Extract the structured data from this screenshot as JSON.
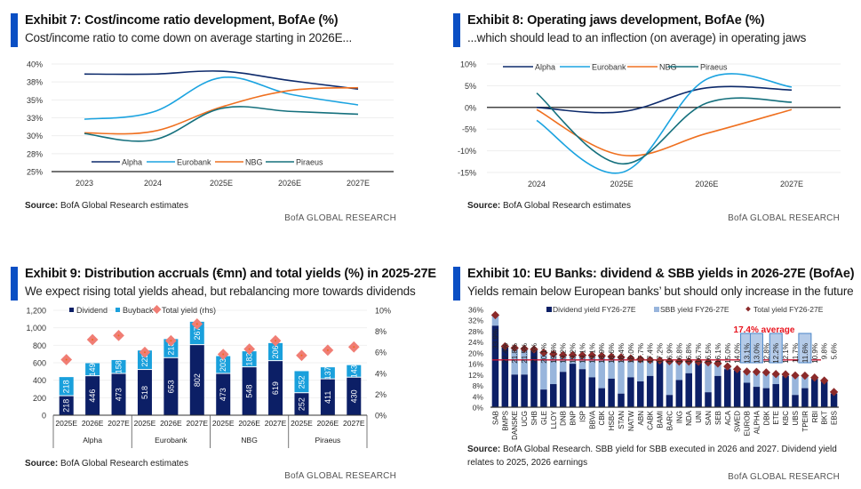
{
  "brand": "BofA GLOBAL RESEARCH",
  "source_label": "Source:",
  "colors": {
    "accent": "#0a4fc4",
    "alpha": "#0d2a6b",
    "eurobank": "#1ba3e0",
    "nbg": "#ef7020",
    "piraeus": "#15707d",
    "dividend": "#0c1f66",
    "buyback": "#1aa0dc",
    "sbb": "#98b5dc",
    "total_yield_9": "#f07d74",
    "total_yield_10": "#8b2a2a",
    "average_line": "#c4122f",
    "average_label": "#e8141e"
  },
  "exhibits": {
    "e7": {
      "title": "Exhibit 7: Cost/income ratio development, BofAe (%)",
      "subtitle": "Cost/income ratio to come down on average starting in 2026E...",
      "source": "BofA Global Research estimates"
    },
    "e8": {
      "title": "Exhibit 8: Operating jaws development, BofAe (%)",
      "subtitle": "...which should lead to an inflection (on average) in operating jaws",
      "source": "BofA Global Research estimates"
    },
    "e9": {
      "title": "Exhibit 9: Distribution accruals (€mn) and total yields (%) in 2025-27E",
      "subtitle": "We expect rising total yields ahead, but rebalancing more towards dividends",
      "source": "BofA Global Research estimates"
    },
    "e10": {
      "title": "Exhibit 10: EU Banks: dividend & SBB yields in 2026-27E (BofAe)",
      "subtitle": "Yields remain below European banks’ but should only increase in the future",
      "source_line1": "BofA Global Research. SBB yield for SBB executed in 2026 and 2027. Dividend yield",
      "source_line2": "relates to 2025, 2026 earnings"
    }
  },
  "chart_data": [
    {
      "id": "e7",
      "type": "line",
      "title": "Cost/income ratio development, BofAe (%)",
      "xlabel": "",
      "ylabel": "",
      "categories": [
        "2023",
        "2024",
        "2025E",
        "2026E",
        "2027E"
      ],
      "ylim": [
        25,
        40
      ],
      "yticks": [
        25,
        27.5,
        30,
        32.5,
        35,
        37.5,
        40
      ],
      "ytick_labels": [
        "25%",
        "28%",
        "30%",
        "33%",
        "35%",
        "38%",
        "40%"
      ],
      "grid": true,
      "legend": "bottom-inside",
      "series": [
        {
          "name": "Alpha",
          "color_key": "alpha",
          "values": [
            38.6,
            38.6,
            39.0,
            37.7,
            36.5
          ]
        },
        {
          "name": "Eurobank",
          "color_key": "eurobank",
          "values": [
            32.3,
            33.3,
            38.1,
            35.8,
            34.3
          ]
        },
        {
          "name": "NBG",
          "color_key": "nbg",
          "values": [
            30.4,
            30.6,
            34.0,
            36.3,
            36.7
          ]
        },
        {
          "name": "Piraeus",
          "color_key": "piraeus",
          "values": [
            30.3,
            29.4,
            33.8,
            33.4,
            33.0
          ]
        }
      ]
    },
    {
      "id": "e8",
      "type": "line",
      "title": "Operating jaws development, BofAe (%)",
      "xlabel": "",
      "ylabel": "",
      "categories": [
        "2024",
        "2025E",
        "2026E",
        "2027E"
      ],
      "ylim": [
        -15,
        10
      ],
      "yticks": [
        -15,
        -10,
        -5,
        0,
        5,
        10
      ],
      "ytick_labels": [
        "-15%",
        "-10%",
        "-5%",
        "0%",
        "5%",
        "10%"
      ],
      "grid": true,
      "legend": "top",
      "series": [
        {
          "name": "Alpha",
          "color_key": "alpha",
          "values": [
            0.0,
            -1.0,
            4.5,
            4.0
          ]
        },
        {
          "name": "Eurobank",
          "color_key": "eurobank",
          "values": [
            -3.0,
            -15.0,
            6.5,
            4.7
          ]
        },
        {
          "name": "NBG",
          "color_key": "nbg",
          "values": [
            -0.5,
            -11.0,
            -6.0,
            -0.5
          ]
        },
        {
          "name": "Piraeus",
          "color_key": "piraeus",
          "values": [
            3.3,
            -13.0,
            1.0,
            1.2
          ]
        }
      ]
    },
    {
      "id": "e9",
      "type": "bar",
      "stacked": true,
      "title": "Distribution accruals (€mn) and total yields (%) in 2025-27E",
      "ylim": [
        0,
        1200
      ],
      "yticks": [
        0,
        200,
        400,
        600,
        800,
        1000,
        1200
      ],
      "ytick_labels": [
        "0",
        "200",
        "400",
        "600",
        "800",
        "1,000",
        "1,200"
      ],
      "y2lim": [
        0,
        10
      ],
      "y2ticks": [
        0,
        2,
        4,
        6,
        8,
        10
      ],
      "y2tick_labels": [
        "0%",
        "2%",
        "4%",
        "6%",
        "8%",
        "10%"
      ],
      "legend": "top",
      "legend_labels": [
        "Dividend",
        "Buyback",
        "Total yield (rhs)"
      ],
      "groups": [
        "Alpha",
        "Eurobank",
        "NBG",
        "Piraeus"
      ],
      "categories": [
        "2025E",
        "2026E",
        "2027E",
        "2025E",
        "2026E",
        "2027E",
        "2025E",
        "2026E",
        "2027E",
        "2025E",
        "2026E",
        "2027E"
      ],
      "series": [
        {
          "name": "Dividend",
          "color_key": "dividend",
          "values": [
            218,
            446,
            473,
            518,
            653,
            802,
            473,
            548,
            619,
            252,
            411,
            430
          ]
        },
        {
          "name": "Buyback",
          "color_key": "buyback",
          "values": [
            218,
            149,
            158,
            222,
            218,
            267,
            203,
            183,
            206,
            252,
            137,
            143
          ]
        },
        {
          "name": "Total yield (rhs)",
          "color_key": "total_yield_9",
          "axis": "right",
          "values": [
            5.3,
            7.2,
            7.6,
            6.0,
            7.1,
            8.7,
            5.8,
            6.3,
            7.1,
            5.7,
            6.2,
            6.5
          ]
        }
      ]
    },
    {
      "id": "e10",
      "type": "bar",
      "stacked": true,
      "title": "EU Banks: dividend & SBB yields in 2026-27E (BofAe)",
      "ylim": [
        0,
        36
      ],
      "yticks": [
        0,
        4,
        8,
        12,
        16,
        20,
        24,
        28,
        32,
        36
      ],
      "ytick_labels": [
        "0%",
        "4%",
        "8%",
        "12%",
        "16%",
        "20%",
        "24%",
        "28%",
        "32%",
        "36%"
      ],
      "legend": "top",
      "legend_labels": [
        "Dividend yield FY26-27E",
        "SBB yield FY26-27E",
        "Total yield FY26-27E"
      ],
      "average": 17.4,
      "average_label": "17.4% average",
      "highlighted": [
        "EUROB",
        "ALPHA",
        "ETE",
        "TPEIR"
      ],
      "categories": [
        "SAB",
        "BMPS",
        "DANSKE",
        "UCG",
        "SHB",
        "GLE",
        "LLOY",
        "DNB",
        "BNP",
        "ISP",
        "BBVA",
        "CBK",
        "HSBC",
        "STAN",
        "NATW",
        "ABN",
        "CABK",
        "BAMI",
        "BARC",
        "ING",
        "NDA",
        "UNI",
        "SAN",
        "SEB",
        "ACA",
        "SWED",
        "EUROB",
        "ALPHA",
        "DBK",
        "ETE",
        "KBC",
        "UBS",
        "TPEIR",
        "RBI",
        "BKT",
        "EBS"
      ],
      "total_labels": [
        "33.9%",
        "22.4%",
        "21.8%",
        "21.5%",
        "21.3%",
        "20.1%",
        "19.6%",
        "19.2%",
        "19.2%",
        "19.1%",
        "19.1%",
        "18.9%",
        "18.6%",
        "18.4%",
        "18.0%",
        "17.7%",
        "17.4%",
        "17.2%",
        "16.9%",
        "16.8%",
        "16.8%",
        "16.7%",
        "16.5%",
        "16.1%",
        "15.0%",
        "14.0%",
        "13.1%",
        "13.0%",
        "12.8%",
        "12.2%",
        "12.1%",
        "11.7%",
        "11.6%",
        "10.9%",
        "9.8%",
        "5.6%"
      ],
      "series": [
        {
          "name": "Dividend yield FY26-27E",
          "color_key": "dividend",
          "values": [
            30.0,
            22.4,
            12.0,
            12.0,
            21.0,
            6.5,
            8.5,
            13.0,
            16.0,
            14.0,
            11.0,
            7.0,
            10.5,
            5.0,
            11.0,
            9.5,
            11.5,
            17.2,
            4.5,
            10.0,
            12.5,
            16.7,
            5.5,
            11.5,
            14.0,
            13.5,
            9.0,
            7.5,
            7.0,
            8.5,
            11.5,
            4.5,
            7.0,
            10.5,
            9.5,
            5.0
          ]
        },
        {
          "name": "SBB yield FY26-27E",
          "color_key": "sbb",
          "values": [
            3.9,
            0.0,
            9.8,
            9.5,
            0.3,
            13.6,
            11.1,
            6.2,
            3.2,
            5.1,
            8.1,
            11.9,
            8.1,
            13.4,
            7.0,
            8.2,
            5.9,
            0.0,
            12.4,
            6.8,
            4.3,
            0.0,
            11.0,
            4.6,
            1.0,
            0.5,
            4.1,
            5.5,
            5.8,
            3.7,
            0.6,
            7.2,
            4.6,
            0.4,
            0.3,
            0.6
          ]
        },
        {
          "name": "Total yield FY26-27E",
          "color_key": "total_yield_10",
          "values": [
            33.9,
            22.4,
            21.8,
            21.5,
            21.3,
            20.1,
            19.6,
            19.2,
            19.2,
            19.1,
            19.1,
            18.9,
            18.6,
            18.4,
            18.0,
            17.7,
            17.4,
            17.2,
            16.9,
            16.8,
            16.8,
            16.7,
            16.5,
            16.1,
            15.0,
            14.0,
            13.1,
            13.0,
            12.8,
            12.2,
            12.1,
            11.7,
            11.6,
            10.9,
            9.8,
            5.6
          ]
        }
      ]
    }
  ]
}
